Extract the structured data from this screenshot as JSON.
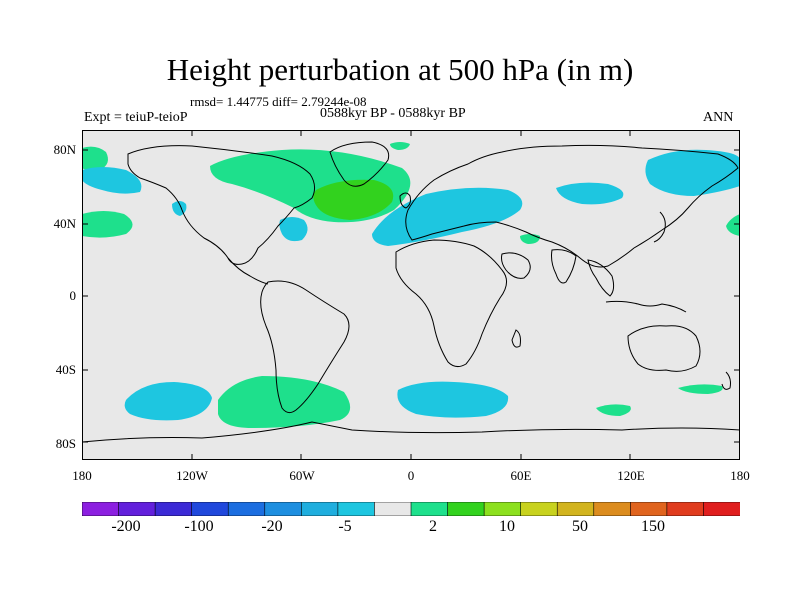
{
  "header": {
    "title": "Height perturbation at 500 hPa (in m)",
    "stats": "rmsd= 1.44775 diff= 2.79244e-08",
    "experiment": "Expt = teiuP-teioP",
    "period": "0588kyr BP - 0588kyr BP",
    "season": "ANN"
  },
  "axes": {
    "lat_labels": [
      "80N",
      "40N",
      "0",
      "40S",
      "80S"
    ],
    "lon_labels": [
      "180",
      "120W",
      "60W",
      "0",
      "60E",
      "120E",
      "180"
    ]
  },
  "colorbar": {
    "colors": [
      "#8c1fe0",
      "#6320dc",
      "#3c2ad6",
      "#2048dc",
      "#1c6ee0",
      "#1e8fe0",
      "#1faede",
      "#1ec6e0",
      "#e8e8e8",
      "#1ee08c",
      "#32d21e",
      "#8ce01e",
      "#c8d21e",
      "#d2b41e",
      "#dc8c1e",
      "#e0641e",
      "#e03c1e",
      "#e01e1e"
    ],
    "labels": [
      "-200",
      "-100",
      "-20",
      "-5",
      "2",
      "10",
      "50",
      "150"
    ]
  },
  "map": {
    "background": "#e8e8e8",
    "anomalies": [
      {
        "name": "na-atlantic-positive",
        "color": "#1ee08c"
      },
      {
        "name": "atlantic-core-positive",
        "color": "#32d21e"
      },
      {
        "name": "nw-pacific-positive",
        "color": "#1ee08c"
      },
      {
        "name": "west-edge-positive",
        "color": "#1ee08c"
      },
      {
        "name": "east-edge-positive",
        "color": "#1ee08c"
      },
      {
        "name": "arctic-small-positive",
        "color": "#1ee08c"
      },
      {
        "name": "middle-east-positive",
        "color": "#1ee08c"
      },
      {
        "name": "south-america-positive",
        "color": "#1ee08c"
      },
      {
        "name": "australia-south-positive",
        "color": "#1ee08c"
      },
      {
        "name": "pacific-south-positive",
        "color": "#1ee08c"
      },
      {
        "name": "alaska-negative",
        "color": "#1ec6e0"
      },
      {
        "name": "pacific-small-negative",
        "color": "#1ec6e0"
      },
      {
        "name": "us-negative",
        "color": "#1ec6e0"
      },
      {
        "name": "europe-negative",
        "color": "#1ec6e0"
      },
      {
        "name": "siberia-negative",
        "color": "#1ec6e0"
      },
      {
        "name": "central-asia-negative",
        "color": "#1ec6e0"
      },
      {
        "name": "pacific-south-negative",
        "color": "#1ec6e0"
      },
      {
        "name": "indian-south-negative",
        "color": "#1ec6e0"
      }
    ]
  }
}
